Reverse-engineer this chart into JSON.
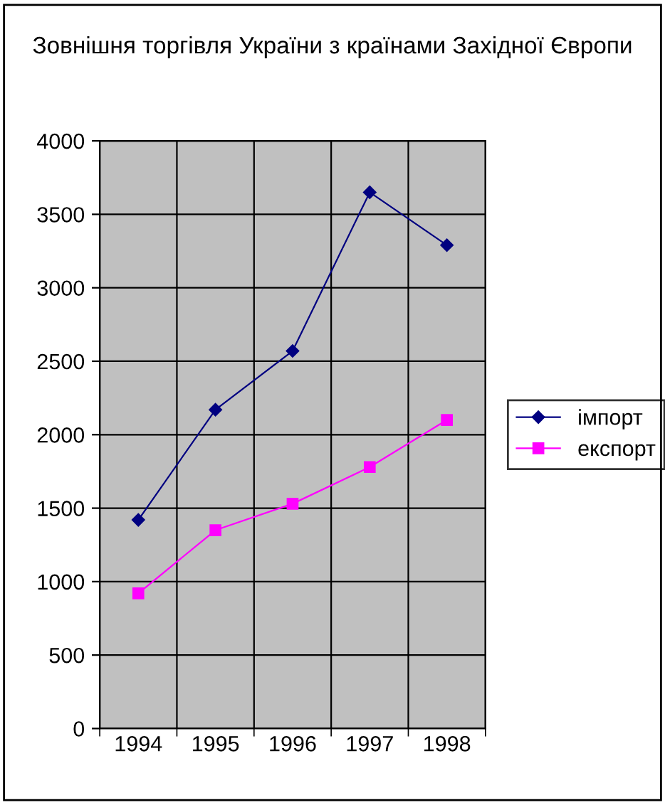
{
  "chart_data": {
    "type": "line",
    "title": "Зовнішня торгівля України з країнами Західної Європи",
    "categories": [
      "1994",
      "1995",
      "1996",
      "1997",
      "1998"
    ],
    "series": [
      {
        "name": "імпорт",
        "color": "#000080",
        "marker": "diamond",
        "values": [
          1420,
          2170,
          2570,
          3650,
          3290
        ]
      },
      {
        "name": "експорт",
        "color": "#ff00ff",
        "marker": "square",
        "values": [
          920,
          1350,
          1530,
          1780,
          2100
        ]
      }
    ],
    "ylim": [
      0,
      4000
    ],
    "yticks": [
      0,
      500,
      1000,
      1500,
      2000,
      2500,
      3000,
      3500,
      4000
    ],
    "grid": true,
    "legend": "right",
    "line_style": "solid"
  }
}
